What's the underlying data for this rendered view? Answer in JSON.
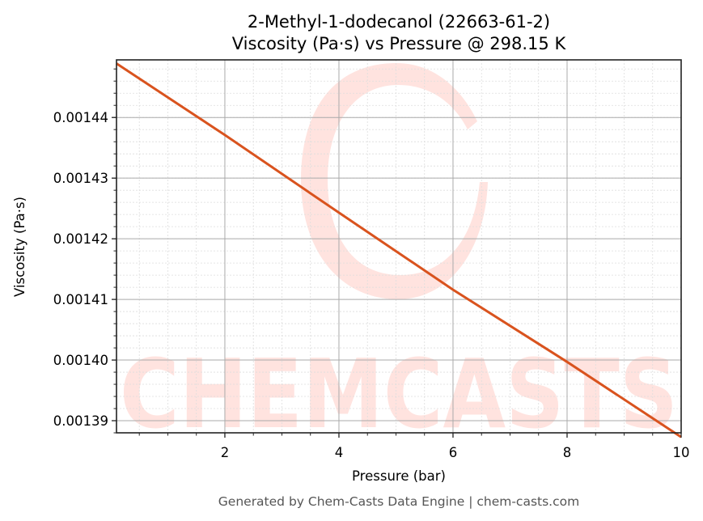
{
  "chart_data": {
    "type": "line",
    "title": "2-Methyl-1-dodecanol (22663-61-2)",
    "subtitle": "Viscosity (Pa·s) vs Pressure @ 298.15 K",
    "xlabel": "Pressure (bar)",
    "ylabel": "Viscosity (Pa·s)",
    "xlim": [
      0.1,
      10
    ],
    "ylim": [
      0.001388,
      0.0014495
    ],
    "x_ticks": [
      2,
      4,
      6,
      8,
      10
    ],
    "x_tick_labels": [
      "2",
      "4",
      "6",
      "8",
      "10"
    ],
    "y_ticks": [
      0.00139,
      0.0014,
      0.00141,
      0.00142,
      0.00143,
      0.00144
    ],
    "y_tick_labels": [
      "0.00139",
      "0.00140",
      "0.00141",
      "0.00142",
      "0.00143",
      "0.00144"
    ],
    "x_minor_step": 0.5,
    "y_minor_step": 2e-06,
    "grid": true,
    "legend": null,
    "series": [
      {
        "name": "Viscosity",
        "color": "#d9531e",
        "x": [
          0.1,
          2,
          4,
          6,
          8,
          10
        ],
        "values": [
          0.0014489,
          0.0014371,
          0.0014243,
          0.0014116,
          0.0013997,
          0.0013873
        ]
      }
    ]
  },
  "watermark": {
    "text": "CHEMCASTS",
    "color": "#ffe3df"
  },
  "footer": {
    "text": "Generated by Chem-Casts Data Engine | chem-casts.com"
  }
}
